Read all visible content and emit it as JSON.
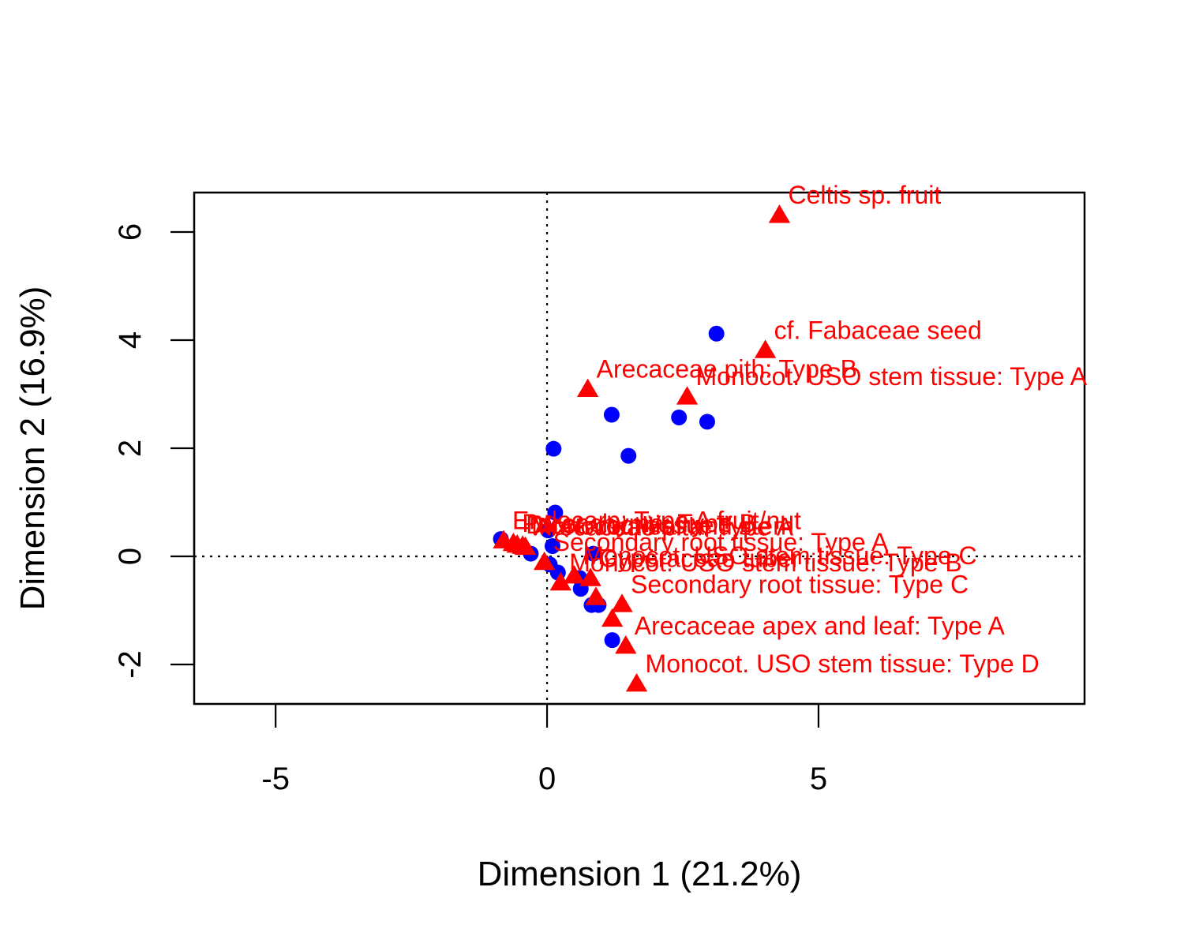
{
  "chart_data": {
    "type": "scatter",
    "title": "",
    "xlabel": "Dimension 1 (21.2%)",
    "ylabel": "Dimension 2 (16.9%)",
    "xlim": [
      -6.5,
      9.9
    ],
    "ylim": [
      -2.73,
      6.73
    ],
    "xticks": [
      -5,
      0,
      5
    ],
    "yticks": [
      -2,
      0,
      2,
      4,
      6
    ],
    "reference_lines": {
      "x": 0,
      "y": 0,
      "style": "dotted"
    },
    "grid": false,
    "legend": "none",
    "colors": {
      "points": "#0000ff",
      "categories": "#ff0000"
    },
    "series": [
      {
        "marker": "circle",
        "color": "#0000ff",
        "points": [
          {
            "x": 3.12,
            "y": 4.12
          },
          {
            "x": 1.19,
            "y": 2.62
          },
          {
            "x": 2.43,
            "y": 2.57
          },
          {
            "x": 2.95,
            "y": 2.49
          },
          {
            "x": 0.12,
            "y": 1.99
          },
          {
            "x": 1.5,
            "y": 1.86
          },
          {
            "x": 0.15,
            "y": 0.81
          },
          {
            "x": 0.02,
            "y": 0.48
          },
          {
            "x": -0.85,
            "y": 0.32
          },
          {
            "x": -0.55,
            "y": 0.18
          },
          {
            "x": -0.3,
            "y": 0.05
          },
          {
            "x": 0.1,
            "y": 0.19
          },
          {
            "x": 0.05,
            "y": -0.15
          },
          {
            "x": 0.2,
            "y": -0.3
          },
          {
            "x": 0.85,
            "y": 0.05
          },
          {
            "x": 0.6,
            "y": -0.4
          },
          {
            "x": 0.62,
            "y": -0.6
          },
          {
            "x": 0.82,
            "y": -0.9
          },
          {
            "x": 0.95,
            "y": -0.9
          },
          {
            "x": 1.2,
            "y": -1.55
          }
        ]
      },
      {
        "marker": "triangle",
        "color": "#ff0000",
        "points": [
          {
            "x": 4.28,
            "y": 6.32,
            "label": "Celtis sp. fruit"
          },
          {
            "x": 4.02,
            "y": 3.82,
            "label": "cf. Fabaceae seed"
          },
          {
            "x": 0.75,
            "y": 3.1,
            "label": "Arecaceae pith: Type B"
          },
          {
            "x": 2.58,
            "y": 2.96,
            "label": "Monocot. USO stem tissue: Type A"
          },
          {
            "x": -0.8,
            "y": 0.3,
            "label": "Endocarp: Type A fruit/nut"
          },
          {
            "x": -0.62,
            "y": 0.25,
            "label": "Parenchyma: Type B"
          },
          {
            "x": -0.55,
            "y": 0.22,
            "label": "Dicot. root tissue"
          },
          {
            "x": -0.45,
            "y": 0.2,
            "label": "Monocot. leaf and stem"
          },
          {
            "x": -0.4,
            "y": 0.18,
            "label": "Arecaceae pith: Type A"
          },
          {
            "x": -0.05,
            "y": -0.1,
            "label": "Secondary root tissue: Type A"
          },
          {
            "x": 0.25,
            "y": -0.48,
            "label": "Monocot. USO stem tissue: Type B"
          },
          {
            "x": 0.5,
            "y": -0.35,
            "label": "Monocot. USO stem tissue: Type C"
          },
          {
            "x": 0.8,
            "y": -0.4,
            "label": "Cyperaceae tuber"
          },
          {
            "x": 0.9,
            "y": -0.75,
            "label": ""
          },
          {
            "x": 1.38,
            "y": -0.88,
            "label": "Secondary root tissue: Type C"
          },
          {
            "x": 1.2,
            "y": -1.15,
            "label": ""
          },
          {
            "x": 1.45,
            "y": -1.65,
            "label": "Arecaceae apex and leaf: Type A"
          },
          {
            "x": 1.65,
            "y": -2.35,
            "label": "Monocot. USO stem tissue: Type D"
          }
        ]
      }
    ]
  }
}
